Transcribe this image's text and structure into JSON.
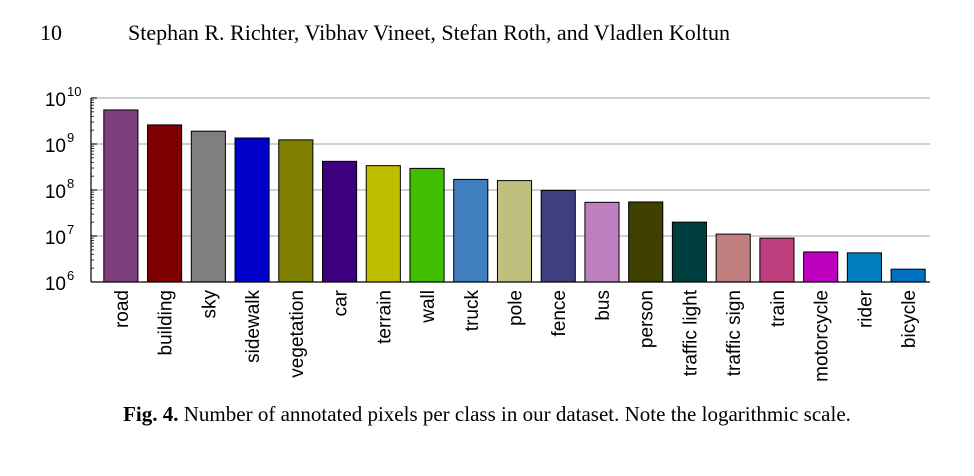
{
  "header": {
    "page_number": "10",
    "authors": "Stephan R. Richter, Vibhav Vineet, Stefan Roth, and Vladlen Koltun"
  },
  "caption": {
    "label": "Fig. 4.",
    "text": " Number of annotated pixels per class in our dataset. Note the logarithmic scale."
  },
  "chart_data": {
    "type": "bar",
    "scale": "log",
    "ylim": [
      1000000,
      10000000000
    ],
    "yticks": [
      {
        "base": "10",
        "exp": "6",
        "value": 1000000
      },
      {
        "base": "10",
        "exp": "7",
        "value": 10000000
      },
      {
        "base": "10",
        "exp": "8",
        "value": 100000000
      },
      {
        "base": "10",
        "exp": "9",
        "value": 1000000000
      },
      {
        "base": "10",
        "exp": "10",
        "value": 10000000000
      }
    ],
    "grid": true,
    "categories": [
      "road",
      "building",
      "sky",
      "sidewalk",
      "vegetation",
      "car",
      "terrain",
      "wall",
      "truck",
      "pole",
      "fence",
      "bus",
      "person",
      "traffic light",
      "traffic sign",
      "train",
      "motorcycle",
      "rider",
      "bicycle"
    ],
    "values": [
      5500000000,
      2600000000,
      1900000000,
      1350000000,
      1230000000,
      420000000,
      338000000,
      295000000,
      170000000,
      160000000,
      98000000,
      54000000,
      55000000,
      20000000,
      11000000,
      9000000,
      4500000,
      4300000,
      1900000
    ],
    "colors": [
      "#7f3f7f",
      "#7f0000",
      "#7f7f7f",
      "#0000c8",
      "#7f7f00",
      "#3f007f",
      "#bfbf00",
      "#3fbf00",
      "#3f7fbf",
      "#bfbf7f",
      "#3f3f7f",
      "#bf7fbf",
      "#3f3f00",
      "#003f3f",
      "#bf7f7f",
      "#bf3f7f",
      "#bf00bf",
      "#007fbf",
      "#0070c0"
    ]
  }
}
